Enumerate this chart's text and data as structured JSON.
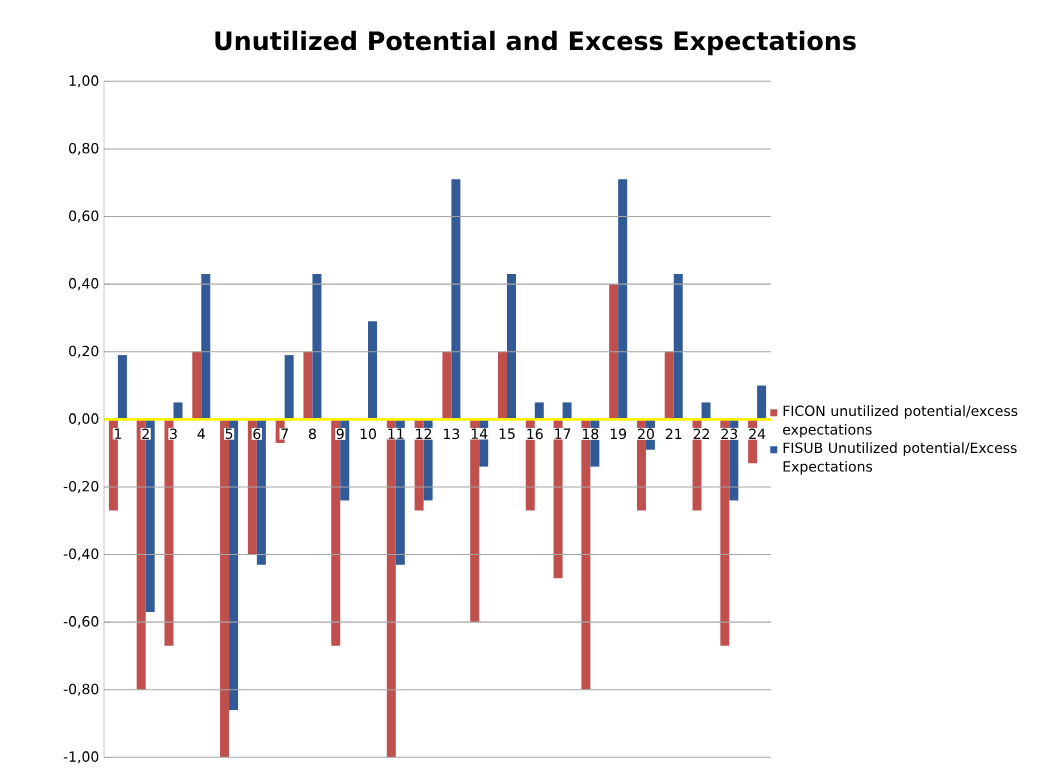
{
  "chart_data": {
    "type": "bar",
    "title": "Unutilized Potential and Excess Expectations",
    "categories": [
      "1",
      "2",
      "3",
      "4",
      "5",
      "6",
      "7",
      "8",
      "9",
      "10",
      "11",
      "12",
      "13",
      "14",
      "15",
      "16",
      "17",
      "18",
      "19",
      "20",
      "21",
      "22",
      "23",
      "24"
    ],
    "series": [
      {
        "name": "FICON unutilized potential/excess expectations",
        "color": "#c0504d",
        "values": [
          -0.27,
          -0.8,
          -0.67,
          0.2,
          -1.0,
          -0.4,
          -0.07,
          0.2,
          -0.67,
          0,
          -1.0,
          -0.27,
          0.2,
          -0.6,
          0.2,
          -0.27,
          -0.47,
          -0.8,
          0.4,
          -0.27,
          0.2,
          -0.27,
          -0.67,
          -0.13
        ]
      },
      {
        "name": "FISUB Unutilized potential/Excess Expectations",
        "color": "#325a96",
        "values": [
          0.19,
          -0.57,
          0.05,
          0.43,
          -0.86,
          -0.43,
          0.19,
          0.43,
          -0.24,
          0.29,
          -0.43,
          -0.24,
          0.71,
          -0.14,
          0.43,
          0.05,
          0.05,
          -0.14,
          0.71,
          -0.09,
          0.43,
          0.05,
          -0.24,
          0.1
        ]
      }
    ],
    "ylim": [
      -1,
      1
    ],
    "yticks": [
      {
        "value": -1,
        "label": "-1,00"
      },
      {
        "value": -0.8,
        "label": "-0,80"
      },
      {
        "value": -0.6,
        "label": "-0,60"
      },
      {
        "value": -0.4,
        "label": "-0,40"
      },
      {
        "value": -0.2,
        "label": "-0,20"
      },
      {
        "value": 0,
        "label": "0,00"
      },
      {
        "value": 0.2,
        "label": "0,20"
      },
      {
        "value": 0.4,
        "label": "0,40"
      },
      {
        "value": 0.6,
        "label": "0,60"
      },
      {
        "value": 0.8,
        "label": "0,80"
      },
      {
        "value": 1,
        "label": "1,00"
      }
    ],
    "grid": "y",
    "legend": "right"
  }
}
